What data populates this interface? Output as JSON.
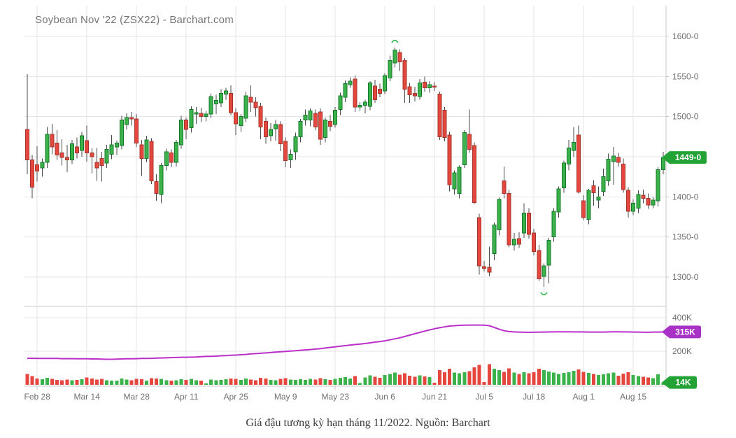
{
  "header": {
    "title": "Soybean Nov '22 (ZSX22) - Barchart.com"
  },
  "caption": {
    "text": "Giá đậu tương kỳ hạn tháng 11/2022. Nguồn: Barchart"
  },
  "colors": {
    "up_fill": "#3cb24b",
    "up_border": "#15782a",
    "down_fill": "#e5463d",
    "down_border": "#a2352c",
    "wick": "#4a4a4a",
    "open_interest_line": "#bb2fc9",
    "badge_price": "#23a336",
    "badge_open_interest": "#a832c6",
    "badge_volume": "#23a336",
    "grid": "#e6e6e6",
    "axis": "#c9c9c9",
    "axis_text": "#707070",
    "title_text": "#757575",
    "marker": "#2db84d"
  },
  "chart_data": {
    "type": "candlestick",
    "title": "Soybean Nov '22 (ZSX22) - Barchart.com",
    "panels": [
      "price",
      "volume-and-open-interest"
    ],
    "grid": "on",
    "y_axis": {
      "side": "right",
      "tick_labels": [
        "1600-0",
        "1550-0",
        "1500-0",
        "1400-0",
        "1350-0",
        "1300-0"
      ],
      "tick_values": [
        1600,
        1550,
        1500,
        1400,
        1350,
        1300
      ],
      "grid_values": [
        1600,
        1550,
        1500,
        1450,
        1400,
        1350,
        1300
      ],
      "range": [
        1282,
        1612
      ]
    },
    "volume_axis": {
      "tick_labels": [
        "400K",
        "200K"
      ],
      "tick_values_k": [
        400,
        200
      ],
      "range_k": [
        0,
        470
      ]
    },
    "x_axis": {
      "tick_labels": [
        "Feb 28",
        "Mar 14",
        "Mar 28",
        "Apr 11",
        "Apr 25",
        "May 9",
        "May 23",
        "Jun 6",
        "Jun 21",
        "Jul 5",
        "Jul 18",
        "Aug 1",
        "Aug 15"
      ],
      "tick_indices": [
        2,
        12,
        22,
        32,
        42,
        52,
        62,
        72,
        82,
        92,
        102,
        112,
        122
      ]
    },
    "badges": {
      "last_price": {
        "label": "1449-0",
        "value": 1449
      },
      "open_interest": {
        "label": "315K",
        "value_k": 315
      },
      "volume": {
        "label": "14K",
        "value_k": 14
      }
    },
    "annotations": {
      "swing_high_index": 74,
      "swing_low_index": 104
    },
    "series": {
      "open": [
        1484,
        1446,
        1440,
        1436,
        1443,
        1478,
        1467,
        1455,
        1449,
        1446,
        1462,
        1458,
        1470,
        1455,
        1443,
        1448,
        1442,
        1453,
        1462,
        1464,
        1490,
        1499,
        1497,
        1465,
        1448,
        1469,
        1419,
        1403,
        1439,
        1455,
        1443,
        1465,
        1496,
        1486,
        1503,
        1504,
        1500,
        1503,
        1516,
        1517,
        1528,
        1529,
        1505,
        1489,
        1498,
        1524,
        1518,
        1513,
        1494,
        1476,
        1485,
        1490,
        1469,
        1446,
        1456,
        1475,
        1496,
        1496,
        1504,
        1506,
        1474,
        1494,
        1490,
        1509,
        1524,
        1540,
        1547,
        1512,
        1514,
        1513,
        1538,
        1534,
        1532,
        1548,
        1567,
        1580,
        1570,
        1537,
        1529,
        1525,
        1543,
        1536,
        1538,
        1528,
        1508,
        1477,
        1410,
        1404,
        1440,
        1478,
        1464,
        1374,
        1313,
        1312,
        1329,
        1359,
        1420,
        1404,
        1340,
        1348,
        1355,
        1380,
        1355,
        1333,
        1301,
        1315,
        1350,
        1381,
        1411,
        1441,
        1458,
        1477,
        1395,
        1372,
        1414,
        1396,
        1407,
        1420,
        1444,
        1449,
        1441,
        1408,
        1382,
        1386,
        1402,
        1398,
        1390,
        1395,
        1434
      ],
      "high": [
        1553,
        1452,
        1463,
        1448,
        1487,
        1491,
        1483,
        1472,
        1465,
        1471,
        1474,
        1481,
        1489,
        1461,
        1461,
        1456,
        1465,
        1477,
        1470,
        1501,
        1504,
        1506,
        1503,
        1471,
        1476,
        1473,
        1428,
        1442,
        1460,
        1459,
        1471,
        1501,
        1499,
        1513,
        1512,
        1511,
        1507,
        1529,
        1527,
        1534,
        1536,
        1539,
        1510,
        1503,
        1531,
        1539,
        1524,
        1517,
        1499,
        1492,
        1496,
        1494,
        1474,
        1459,
        1480,
        1497,
        1509,
        1510,
        1509,
        1510,
        1499,
        1502,
        1512,
        1530,
        1545,
        1549,
        1551,
        1518,
        1521,
        1544,
        1546,
        1541,
        1554,
        1576,
        1586,
        1584,
        1573,
        1542,
        1537,
        1547,
        1550,
        1544,
        1543,
        1531,
        1512,
        1481,
        1433,
        1439,
        1483,
        1509,
        1468,
        1379,
        1320,
        1338,
        1368,
        1399,
        1438,
        1409,
        1355,
        1356,
        1392,
        1386,
        1360,
        1340,
        1317,
        1349,
        1386,
        1413,
        1445,
        1471,
        1487,
        1489,
        1402,
        1410,
        1421,
        1413,
        1435,
        1454,
        1462,
        1455,
        1448,
        1412,
        1397,
        1408,
        1409,
        1404,
        1400,
        1437,
        1456
      ],
      "low": [
        1428,
        1398,
        1419,
        1425,
        1436,
        1453,
        1446,
        1439,
        1431,
        1441,
        1448,
        1450,
        1444,
        1429,
        1420,
        1419,
        1436,
        1447,
        1452,
        1459,
        1484,
        1489,
        1462,
        1426,
        1443,
        1416,
        1395,
        1392,
        1433,
        1437,
        1438,
        1460,
        1472,
        1480,
        1491,
        1493,
        1494,
        1498,
        1503,
        1512,
        1521,
        1502,
        1477,
        1481,
        1493,
        1506,
        1500,
        1472,
        1466,
        1469,
        1470,
        1457,
        1437,
        1436,
        1446,
        1468,
        1489,
        1488,
        1483,
        1465,
        1468,
        1482,
        1486,
        1502,
        1518,
        1536,
        1506,
        1507,
        1504,
        1508,
        1517,
        1524,
        1528,
        1544,
        1561,
        1557,
        1517,
        1517,
        1519,
        1521,
        1531,
        1530,
        1532,
        1471,
        1469,
        1407,
        1403,
        1398,
        1436,
        1455,
        1391,
        1303,
        1307,
        1301,
        1321,
        1352,
        1398,
        1337,
        1333,
        1336,
        1349,
        1348,
        1327,
        1295,
        1288,
        1292,
        1344,
        1374,
        1405,
        1433,
        1450,
        1404,
        1371,
        1366,
        1389,
        1386,
        1401,
        1414,
        1415,
        1438,
        1405,
        1374,
        1377,
        1380,
        1392,
        1385,
        1386,
        1388,
        1428
      ],
      "close": [
        1446,
        1412,
        1432,
        1443,
        1478,
        1462,
        1452,
        1449,
        1446,
        1466,
        1455,
        1476,
        1455,
        1450,
        1436,
        1439,
        1459,
        1465,
        1467,
        1496,
        1499,
        1497,
        1467,
        1448,
        1471,
        1420,
        1404,
        1439,
        1456,
        1443,
        1468,
        1496,
        1484,
        1509,
        1505,
        1500,
        1503,
        1525,
        1520,
        1529,
        1532,
        1505,
        1491,
        1500,
        1526,
        1518,
        1511,
        1487,
        1475,
        1484,
        1490,
        1466,
        1445,
        1453,
        1475,
        1494,
        1502,
        1507,
        1487,
        1472,
        1496,
        1488,
        1508,
        1526,
        1541,
        1544,
        1512,
        1514,
        1518,
        1542,
        1521,
        1529,
        1551,
        1570,
        1583,
        1568,
        1534,
        1527,
        1526,
        1542,
        1536,
        1540,
        1537,
        1475,
        1474,
        1415,
        1430,
        1437,
        1480,
        1459,
        1393,
        1314,
        1311,
        1306,
        1365,
        1397,
        1404,
        1340,
        1347,
        1341,
        1380,
        1353,
        1332,
        1298,
        1314,
        1346,
        1382,
        1410,
        1442,
        1461,
        1468,
        1406,
        1374,
        1408,
        1405,
        1400,
        1425,
        1447,
        1451,
        1443,
        1409,
        1382,
        1392,
        1403,
        1398,
        1390,
        1396,
        1434,
        1449
      ],
      "volume_k": [
        64,
        52,
        38,
        34,
        42,
        36,
        30,
        28,
        32,
        27,
        30,
        34,
        43,
        38,
        32,
        35,
        28,
        26,
        24,
        38,
        32,
        28,
        36,
        34,
        26,
        40,
        38,
        36,
        27,
        24,
        28,
        34,
        30,
        36,
        28,
        25,
        8,
        32,
        27,
        30,
        34,
        38,
        36,
        30,
        38,
        32,
        28,
        42,
        38,
        30,
        28,
        36,
        40,
        32,
        30,
        34,
        30,
        36,
        32,
        40,
        34,
        30,
        36,
        42,
        46,
        38,
        52,
        10,
        44,
        56,
        48,
        42,
        58,
        64,
        72,
        60,
        68,
        54,
        48,
        56,
        50,
        46,
        12,
        88,
        76,
        96,
        72,
        68,
        74,
        82,
        104,
        118,
        16,
        122,
        96,
        88,
        78,
        98,
        72,
        64,
        76,
        68,
        74,
        96,
        88,
        80,
        72,
        64,
        70,
        76,
        84,
        92,
        78,
        70,
        64,
        58,
        62,
        68,
        72,
        54,
        66,
        74,
        58,
        52,
        48,
        44,
        40,
        62,
        14
      ],
      "open_interest_k": [
        158,
        158,
        157,
        157,
        157,
        157,
        157,
        156,
        156,
        156,
        155,
        155,
        155,
        154,
        154,
        153,
        152,
        152,
        153,
        154,
        155,
        155,
        156,
        157,
        157,
        158,
        159,
        160,
        161,
        162,
        163,
        164,
        164,
        165,
        166,
        168,
        169,
        170,
        171,
        173,
        174,
        176,
        177,
        179,
        181,
        184,
        186,
        188,
        190,
        192,
        195,
        197,
        199,
        201,
        203,
        206,
        208,
        210,
        213,
        216,
        219,
        223,
        226,
        230,
        233,
        237,
        240,
        243,
        246,
        250,
        254,
        258,
        262,
        268,
        274,
        280,
        288,
        296,
        304,
        312,
        320,
        327,
        334,
        340,
        345,
        350,
        352,
        354,
        355,
        356,
        356,
        356,
        355,
        352,
        342,
        331,
        322,
        317,
        315,
        314,
        313,
        313,
        313,
        314,
        314,
        315,
        315,
        316,
        316,
        316,
        315,
        315,
        315,
        314,
        314,
        314,
        314,
        315,
        316,
        316,
        315,
        315,
        314,
        314,
        313,
        313,
        314,
        314,
        315
      ]
    }
  }
}
